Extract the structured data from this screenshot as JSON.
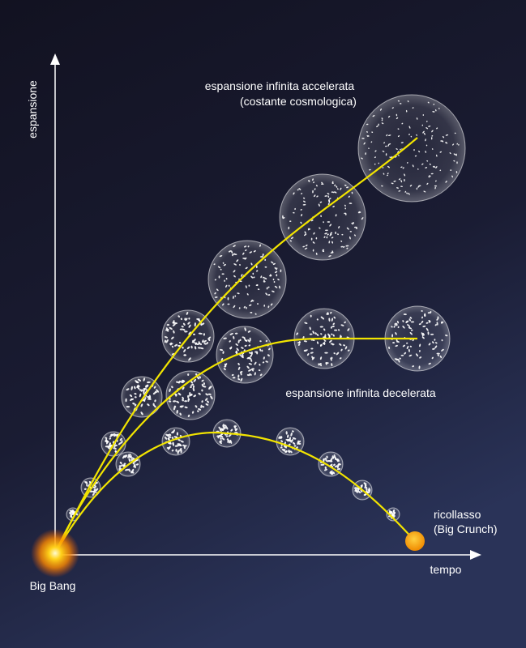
{
  "axes": {
    "y_label": "espansione",
    "x_label": "tempo"
  },
  "labels": {
    "big_bang": "Big Bang",
    "accelerated": [
      "espansione infinita accelerata",
      "(costante cosmologica)"
    ],
    "decelerated": "espansione infinita decelerata",
    "recollapse": [
      "ricollasso",
      "(Big Crunch)"
    ]
  }
}
